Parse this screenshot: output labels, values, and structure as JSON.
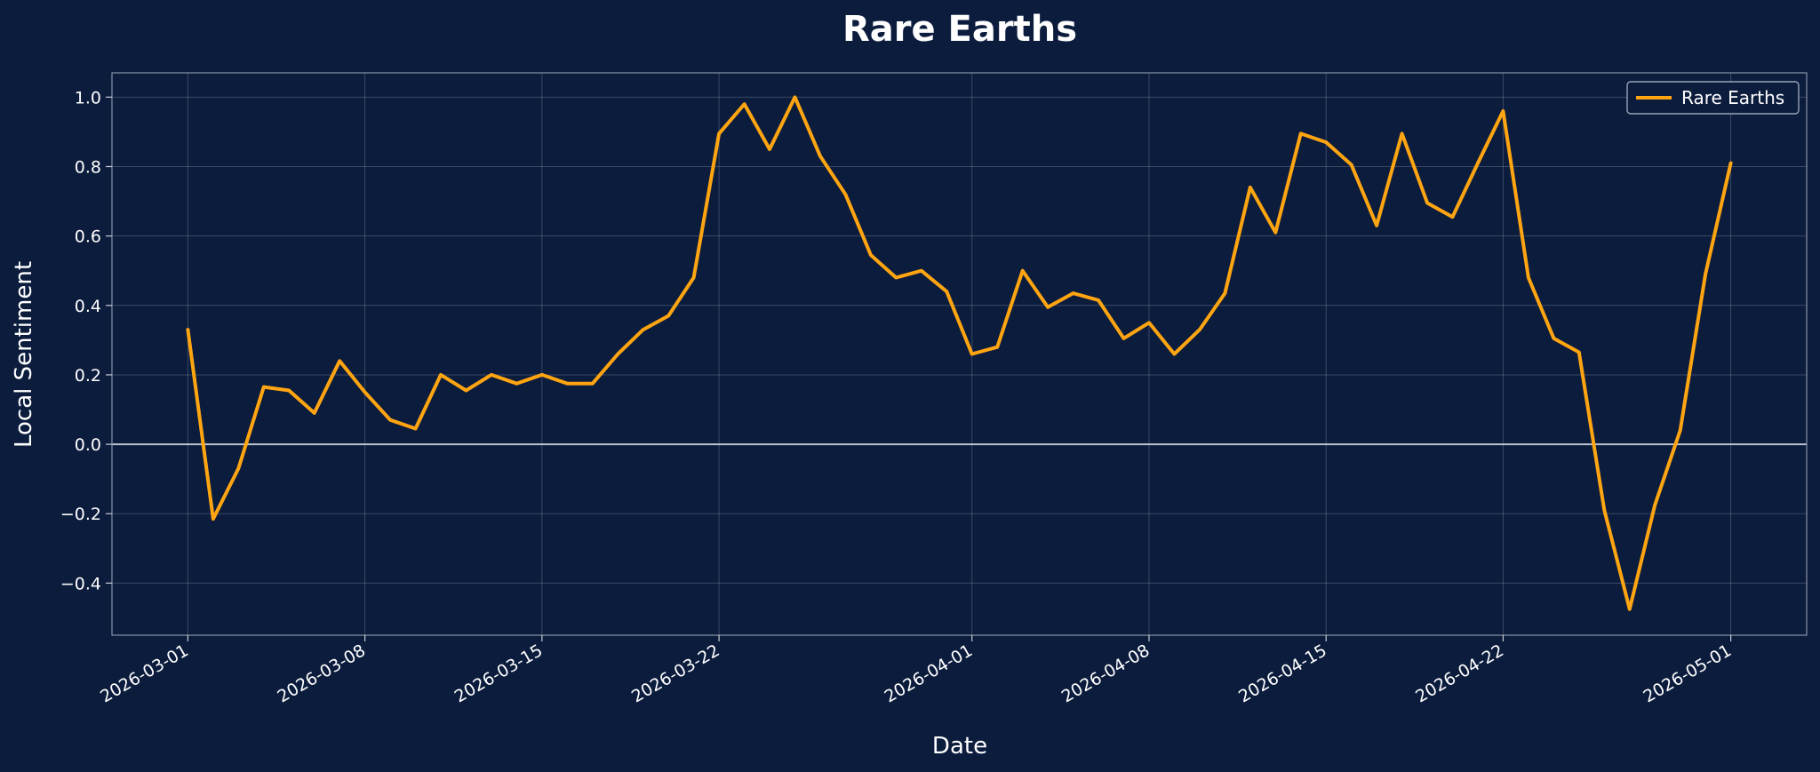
{
  "chart_data": {
    "type": "line",
    "title": "Rare Earths",
    "xlabel": "Date",
    "ylabel": "Local Sentiment",
    "x_start": "2026-03-01",
    "xlim": [
      "2026-02-26",
      "2026-05-04"
    ],
    "ylim": [
      -0.55,
      1.07
    ],
    "yticks": [
      -0.4,
      -0.2,
      0.0,
      0.2,
      0.4,
      0.6,
      0.8,
      1.0
    ],
    "xticks": [
      "2026-03-01",
      "2026-03-08",
      "2026-03-15",
      "2026-03-22",
      "2026-04-01",
      "2026-04-08",
      "2026-04-15",
      "2026-04-22",
      "2026-05-01"
    ],
    "grid": true,
    "zero_line": true,
    "legend": {
      "position": "top-right"
    },
    "series": [
      {
        "name": "Rare Earths",
        "color": "#ffa511",
        "values": [
          0.33,
          -0.215,
          -0.07,
          0.165,
          0.155,
          0.09,
          0.24,
          0.15,
          0.07,
          0.045,
          0.2,
          0.155,
          0.2,
          0.175,
          0.2,
          0.175,
          0.175,
          0.26,
          0.33,
          0.37,
          0.48,
          0.895,
          0.98,
          0.85,
          1.0,
          0.83,
          0.72,
          0.545,
          0.48,
          0.5,
          0.44,
          0.26,
          0.28,
          0.5,
          0.395,
          0.435,
          0.415,
          0.305,
          0.35,
          0.26,
          0.33,
          0.435,
          0.74,
          0.61,
          0.895,
          0.87,
          0.805,
          0.63,
          0.895,
          0.695,
          0.655,
          0.81,
          0.96,
          0.48,
          0.305,
          0.265,
          -0.19,
          -0.475,
          -0.175,
          0.04,
          0.49,
          0.81
        ]
      }
    ]
  }
}
